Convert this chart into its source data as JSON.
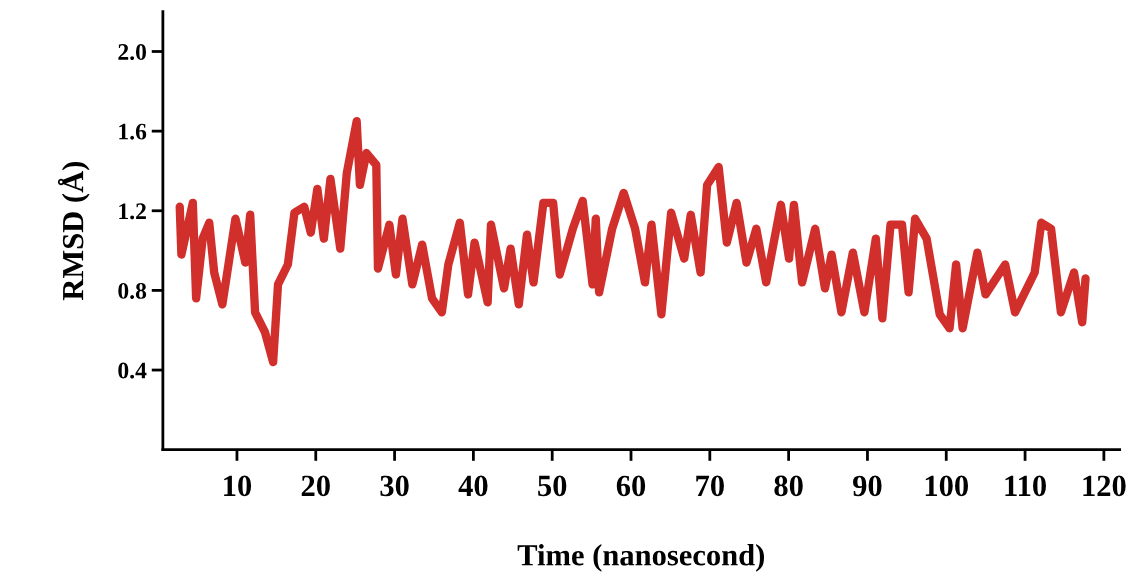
{
  "chart_data": {
    "type": "line",
    "xlabel": "Time (nanosecond)",
    "ylabel": "RMSD (Å)",
    "xlim": [
      0.6,
      122
    ],
    "ylim": [
      0,
      2.2
    ],
    "xticks": [
      10,
      20,
      30,
      40,
      50,
      60,
      70,
      80,
      90,
      100,
      110,
      120
    ],
    "yticks": [
      0.4,
      0.8,
      1.2,
      1.6,
      {
        "value": 2,
        "label": "2.0"
      }
    ],
    "grid": false,
    "marker": "none",
    "line_style": "solid",
    "series": [
      {
        "color": "#d12f2b",
        "x": [
          2.74,
          2.95,
          4.4,
          4.82,
          5.65,
          6.48,
          7.11,
          8.15,
          9.81,
          11.06,
          11.68,
          12.3,
          13.55,
          14.59,
          15.21,
          16.46,
          17.29,
          18.54,
          19.37,
          20.2,
          21.03,
          21.86,
          23.11,
          23.94,
          25.19,
          25.6,
          26.43,
          27.68,
          27.89,
          29.34,
          30.17,
          31.0,
          32.25,
          33.5,
          34.75,
          36.0,
          36.82,
          38.28,
          39.32,
          40.15,
          41.81,
          42.23,
          43.89,
          44.72,
          45.76,
          46.8,
          47.63,
          48.88,
          50.12,
          50.96,
          52.62,
          53.87,
          55.12,
          55.53,
          55.95,
          57.61,
          59.07,
          60.52,
          61.77,
          62.6,
          63.85,
          65.09,
          66.75,
          67.58,
          68.83,
          69.66,
          71.12,
          72.16,
          73.4,
          74.65,
          75.9,
          77.15,
          79.02,
          80.05,
          80.67,
          81.71,
          83.37,
          84.61,
          85.45,
          86.7,
          88.15,
          89.61,
          91.06,
          91.89,
          92.93,
          94.39,
          95.22,
          96.05,
          97.51,
          99.17,
          100.42,
          101.25,
          102.08,
          103.95,
          104.99,
          107.48,
          108.73,
          111.22,
          112.06,
          113.3,
          114.55,
          116.21,
          117.25,
          117.67
        ],
        "values": [
          1.22,
          0.98,
          1.24,
          0.76,
          1.06,
          1.14,
          0.89,
          0.73,
          1.16,
          0.94,
          1.18,
          0.69,
          0.59,
          0.44,
          0.83,
          0.93,
          1.19,
          1.22,
          1.09,
          1.31,
          1.06,
          1.36,
          1.01,
          1.39,
          1.65,
          1.33,
          1.49,
          1.43,
          0.91,
          1.13,
          0.88,
          1.16,
          0.83,
          1.03,
          0.76,
          0.69,
          0.93,
          1.14,
          0.78,
          1.04,
          0.74,
          1.13,
          0.81,
          1.01,
          0.73,
          1.08,
          0.84,
          1.24,
          1.24,
          0.88,
          1.11,
          1.25,
          0.83,
          1.16,
          0.79,
          1.11,
          1.29,
          1.11,
          0.84,
          1.13,
          0.68,
          1.19,
          0.96,
          1.18,
          0.89,
          1.33,
          1.42,
          1.04,
          1.24,
          0.94,
          1.11,
          0.84,
          1.23,
          0.96,
          1.23,
          0.84,
          1.11,
          0.81,
          0.98,
          0.69,
          0.99,
          0.69,
          1.06,
          0.66,
          1.13,
          1.13,
          0.79,
          1.16,
          1.06,
          0.68,
          0.61,
          0.93,
          0.61,
          0.99,
          0.78,
          0.93,
          0.69,
          0.89,
          1.14,
          1.11,
          0.69,
          0.89,
          0.64,
          0.86
        ]
      }
    ]
  }
}
